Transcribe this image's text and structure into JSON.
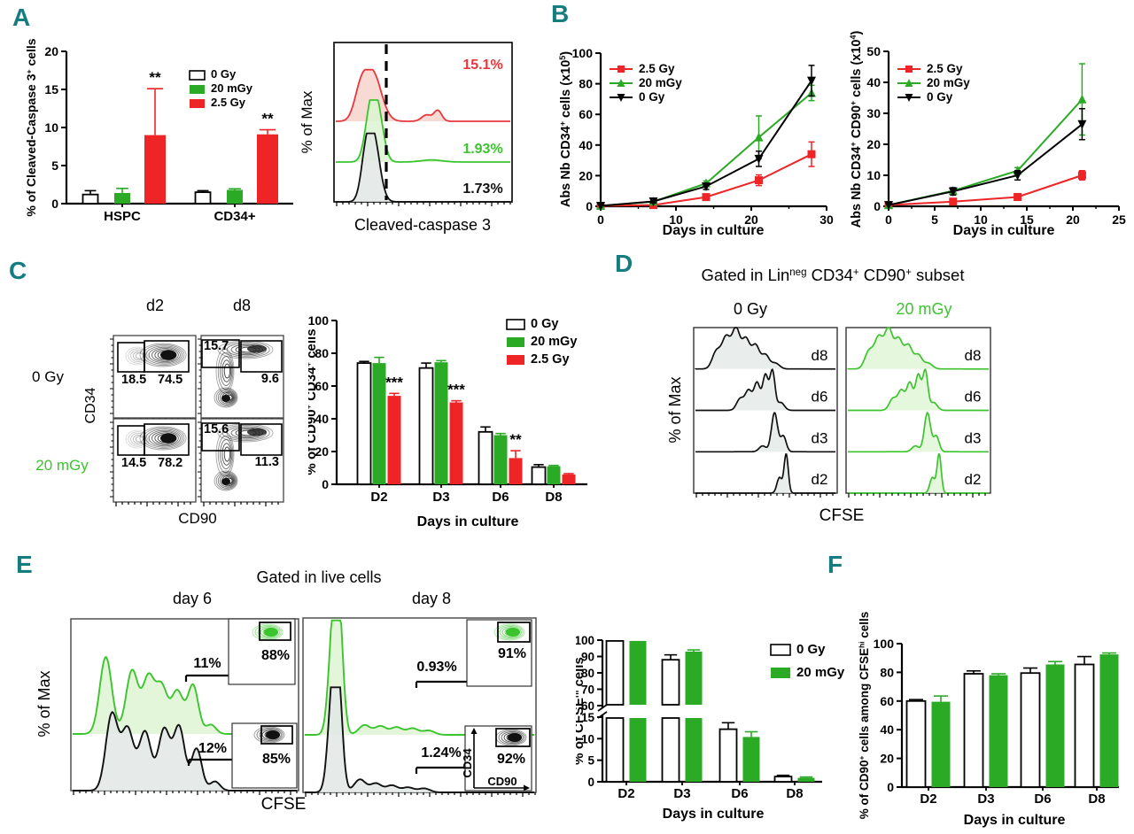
{
  "panel_labels": [
    "A",
    "B",
    "C",
    "D",
    "E",
    "F"
  ],
  "colors": {
    "teal": "#157c80",
    "green": "#2baa25",
    "green_bright": "#3cc42f",
    "red": "#ee2426",
    "red_bright": "#e8373c",
    "black": "#000000",
    "fill_green": "#dcf4d1",
    "fill_red": "#f7d4cd",
    "fill_gray": "#e2e8e6",
    "white": "#ffffff"
  },
  "chart_data": [
    {
      "id": "a_bar",
      "type": "grouped_bar",
      "ylabel": "% of Cleaved-Caspase 3^{+} cells",
      "ylim": [
        0,
        20
      ],
      "yticks": [
        0,
        5,
        10,
        15,
        20
      ],
      "categories": [
        "HSPC",
        "CD34+"
      ],
      "series": [
        {
          "name": "0 Gy",
          "color": "white",
          "values": [
            1.2,
            1.5
          ],
          "errors": [
            0.5,
            0.2
          ]
        },
        {
          "name": "20 mGy",
          "color": "green",
          "values": [
            1.4,
            1.8
          ],
          "errors": [
            0.6,
            0.15
          ]
        },
        {
          "name": "2.5 Gy",
          "color": "red",
          "values": [
            9.0,
            9.1
          ],
          "errors": [
            6.1,
            0.6
          ]
        }
      ],
      "sig": [
        {
          "category": 0,
          "series": 2,
          "text": "**"
        },
        {
          "category": 1,
          "series": 2,
          "text": "**"
        }
      ],
      "legend": [
        "0 Gy",
        "20 mGy",
        "2.5 Gy"
      ]
    },
    {
      "id": "a_hist",
      "type": "ridge_hist",
      "xlabel": "Cleaved-caspase 3",
      "ylabel": "% of Max",
      "rows": [
        {
          "label": "15.1%",
          "color": "red",
          "peaks": [
            [
              0.21,
              1.0,
              0.05
            ],
            [
              0.14,
              0.5,
              0.035
            ],
            [
              0.52,
              0.13,
              0.028
            ],
            [
              0.585,
              0.22,
              0.022
            ]
          ]
        },
        {
          "label": "1.93%",
          "color": "green",
          "peaks": [
            [
              0.205,
              1.0,
              0.033
            ],
            [
              0.25,
              0.55,
              0.03
            ],
            [
              0.55,
              0.035,
              0.06
            ]
          ]
        },
        {
          "label": "1.73%",
          "color": "black",
          "peaks": [
            [
              0.215,
              1.0,
              0.036
            ],
            [
              0.17,
              0.5,
              0.028
            ]
          ]
        }
      ]
    },
    {
      "id": "b_left",
      "type": "line",
      "xlabel": "Days in culture",
      "ylabel": "Abs Nb CD34^{+} cells (x10^{5})",
      "xlim": [
        0,
        30
      ],
      "xticks": [
        0,
        10,
        20,
        30
      ],
      "ylim": [
        0,
        100
      ],
      "yticks": [
        0,
        20,
        40,
        60,
        80,
        100
      ],
      "x": [
        0,
        7,
        14,
        21,
        28
      ],
      "series": [
        {
          "name": "2.5 Gy",
          "color": "red",
          "marker": "square",
          "values": [
            0.3,
            0.8,
            6,
            17,
            34
          ],
          "errors": [
            0,
            0.4,
            1,
            3.5,
            8
          ]
        },
        {
          "name": "20 mGy",
          "color": "green",
          "marker": "triangle-up",
          "values": [
            0.3,
            3,
            15,
            45,
            74
          ],
          "errors": [
            0,
            0.5,
            1.5,
            14,
            5
          ]
        },
        {
          "name": "0 Gy",
          "color": "black",
          "marker": "triangle-down",
          "values": [
            0.3,
            3.2,
            13,
            31,
            82
          ],
          "errors": [
            0,
            1,
            2,
            5,
            10
          ]
        }
      ]
    },
    {
      "id": "b_right",
      "type": "line",
      "xlabel": "Days in culture",
      "ylabel": "Abs Nb CD34^{+} CD90^{+} cells (x10^{4})",
      "xlim": [
        0,
        25
      ],
      "xticks": [
        0,
        5,
        10,
        15,
        20,
        25
      ],
      "ylim": [
        0,
        50
      ],
      "yticks": [
        0,
        10,
        20,
        30,
        40,
        50
      ],
      "x": [
        0,
        7,
        14,
        21
      ],
      "series": [
        {
          "name": "2.5 Gy",
          "color": "red",
          "marker": "square",
          "values": [
            0.4,
            1.5,
            3,
            10
          ],
          "errors": [
            0,
            0.3,
            0.5,
            1.5
          ]
        },
        {
          "name": "20 mGy",
          "color": "green",
          "marker": "triangle-up",
          "values": [
            0.4,
            5,
            11.5,
            34.5
          ],
          "errors": [
            0,
            0.8,
            1,
            11.5
          ]
        },
        {
          "name": "0 Gy",
          "color": "black",
          "marker": "triangle-down",
          "values": [
            0.4,
            4.8,
            10,
            26.5
          ],
          "errors": [
            0,
            1.2,
            1.5,
            5
          ]
        }
      ]
    },
    {
      "id": "c_flow",
      "type": "flow_contour_grid",
      "col_labels": [
        "d2",
        "d8"
      ],
      "row_labels": [
        {
          "text": "0 Gy",
          "color": "black"
        },
        {
          "text": "20 mGy",
          "color": "green"
        }
      ],
      "xlabel": "CD90",
      "ylabel": "CD34",
      "panels": [
        {
          "values": [
            "18.5",
            "74.5"
          ]
        },
        {
          "values": [
            "15.7",
            "9.6"
          ]
        },
        {
          "values": [
            "14.5",
            "78.2"
          ]
        },
        {
          "values": [
            "15.6",
            "11.3"
          ]
        }
      ]
    },
    {
      "id": "c_bar",
      "type": "grouped_bar",
      "xlabel": "Days in culture",
      "ylabel": "% of CD90^{+} CD34^{+} cells",
      "ylim": [
        0,
        100
      ],
      "yticks": [
        0,
        20,
        40,
        60,
        80,
        100
      ],
      "categories": [
        "D2",
        "D3",
        "D6",
        "D8"
      ],
      "series": [
        {
          "name": "0 Gy",
          "color": "white",
          "values": [
            74,
            71,
            32,
            10.5
          ],
          "errors": [
            1,
            3,
            3,
            1.5
          ]
        },
        {
          "name": "20 mGy",
          "color": "green",
          "values": [
            74,
            74.5,
            30,
            11
          ],
          "errors": [
            3.5,
            1,
            1,
            0.5
          ]
        },
        {
          "name": "2.5 Gy",
          "color": "red",
          "values": [
            54,
            50,
            16,
            6
          ],
          "errors": [
            1.5,
            1,
            4.5,
            0.5
          ]
        }
      ],
      "sig": [
        {
          "category": 0,
          "series": 2,
          "text": "***"
        },
        {
          "category": 1,
          "series": 2,
          "text": "***"
        },
        {
          "category": 2,
          "series": 2,
          "text": "**"
        }
      ],
      "legend": [
        "0 Gy",
        "20 mGy",
        "2.5 Gy"
      ]
    },
    {
      "id": "d_flow",
      "type": "ridge_grid",
      "title": "Gated in Lin^{neg} CD34^{+} CD90^{+} subset",
      "columns": [
        {
          "label": "0 Gy",
          "color": "black"
        },
        {
          "label": "20 mGy",
          "color": "green"
        }
      ],
      "rows": [
        "d8",
        "d6",
        "d3",
        "d2"
      ],
      "xlabel": "CFSE",
      "ylabel": "% of Max",
      "peaks": {
        "d8": [
          [
            0.15,
            0.45,
            0.03
          ],
          [
            0.22,
            0.8,
            0.03
          ],
          [
            0.29,
            1.0,
            0.028
          ],
          [
            0.36,
            0.75,
            0.028
          ],
          [
            0.43,
            0.6,
            0.028
          ],
          [
            0.5,
            0.35,
            0.026
          ],
          [
            0.57,
            0.15,
            0.03
          ]
        ],
        "d6": [
          [
            0.32,
            0.3,
            0.026
          ],
          [
            0.38,
            0.5,
            0.024
          ],
          [
            0.44,
            0.7,
            0.022
          ],
          [
            0.5,
            0.9,
            0.02
          ],
          [
            0.55,
            1.0,
            0.018
          ],
          [
            0.61,
            0.2,
            0.025
          ]
        ],
        "d3": [
          [
            0.48,
            0.15,
            0.025
          ],
          [
            0.565,
            1.0,
            0.022
          ],
          [
            0.628,
            0.4,
            0.02
          ]
        ],
        "d2": [
          [
            0.6,
            0.4,
            0.018
          ],
          [
            0.648,
            1.0,
            0.015
          ]
        ]
      }
    },
    {
      "id": "e_flow",
      "type": "flow_overlay",
      "title": "Gated in live cells",
      "day_labels": [
        "day 6",
        "day 8"
      ],
      "xlabel": "CFSE",
      "ylabel": "% of Max",
      "inset_axes": {
        "x": "CD90",
        "y": "CD34"
      },
      "days": [
        {
          "green": {
            "gate_label": "11%",
            "inset_label": "88%",
            "peaks": [
              [
                0.148,
                1.0,
                0.027
              ],
              [
                0.265,
                0.82,
                0.027
              ],
              [
                0.338,
                0.72,
                0.026
              ],
              [
                0.397,
                0.6,
                0.026
              ],
              [
                0.467,
                0.55,
                0.026
              ],
              [
                0.537,
                0.63,
                0.024
              ],
              [
                0.617,
                0.12,
                0.022
              ]
            ]
          },
          "black": {
            "gate_label": "12%",
            "inset_label": "85%",
            "peaks": [
              [
                0.175,
                1.0,
                0.027
              ],
              [
                0.245,
                0.8,
                0.027
              ],
              [
                0.323,
                0.77,
                0.027
              ],
              [
                0.408,
                0.8,
                0.026
              ],
              [
                0.475,
                0.83,
                0.025
              ],
              [
                0.553,
                0.55,
                0.023
              ],
              [
                0.635,
                0.12,
                0.022
              ]
            ]
          }
        },
        {
          "green": {
            "gate_label": "0.93%",
            "inset_label": "91%",
            "peaks": [
              [
                0.125,
                1.0,
                0.02
              ],
              [
                0.15,
                0.9,
                0.018
              ],
              [
                0.26,
                0.09,
                0.025
              ],
              [
                0.33,
                0.08,
                0.025
              ],
              [
                0.4,
                0.07,
                0.025
              ],
              [
                0.47,
                0.06,
                0.025
              ],
              [
                0.54,
                0.04,
                0.025
              ]
            ]
          },
          "black": {
            "gate_label": "1.24%",
            "inset_label": "92%",
            "show_inset_axes": true,
            "peaks": [
              [
                0.122,
                1.0,
                0.02
              ],
              [
                0.147,
                0.88,
                0.018
              ],
              [
                0.24,
                0.13,
                0.025
              ],
              [
                0.31,
                0.09,
                0.025
              ],
              [
                0.38,
                0.07,
                0.025
              ],
              [
                0.45,
                0.05,
                0.025
              ],
              [
                0.52,
                0.04,
                0.025
              ]
            ]
          }
        }
      ]
    },
    {
      "id": "e_bar",
      "type": "broken_bar",
      "xlabel": "Days in culture",
      "ylabel": "% of CFSE^{hi} cells",
      "segments": [
        {
          "range": [
            60,
            100
          ],
          "ticks": [
            60,
            70,
            80,
            90,
            100
          ]
        },
        {
          "range": [
            0,
            15
          ],
          "ticks": [
            0,
            5,
            10,
            15
          ]
        }
      ],
      "categories": [
        "D2",
        "D3",
        "D6",
        "D8"
      ],
      "series": [
        {
          "name": "0 Gy",
          "color": "white",
          "values": [
            99.5,
            88,
            12.2,
            1.2
          ],
          "errors": [
            0,
            3,
            1.5,
            0.3
          ]
        },
        {
          "name": "20 mGy",
          "color": "green",
          "values": [
            99.5,
            93,
            10.4,
            0.9
          ],
          "errors": [
            0,
            1,
            1.2,
            0.2
          ]
        }
      ],
      "legend": [
        "0 Gy",
        "20 mGy"
      ]
    },
    {
      "id": "f_bar",
      "type": "grouped_bar",
      "xlabel": "Days in culture",
      "ylabel": "% of CD90^{+} cells among CFSE^{hi} cells",
      "ylim": [
        0,
        100
      ],
      "yticks": [
        0,
        20,
        40,
        60,
        80,
        100
      ],
      "categories": [
        "D2",
        "D3",
        "D6",
        "D8"
      ],
      "series": [
        {
          "name": "0 Gy",
          "color": "white",
          "values": [
            60,
            79,
            79.5,
            85.5
          ],
          "errors": [
            1,
            2,
            3.5,
            5.5
          ]
        },
        {
          "name": "20 mGy",
          "color": "green",
          "values": [
            59.5,
            78,
            85.5,
            92.5
          ],
          "errors": [
            4,
            1,
            2,
            1
          ]
        }
      ]
    }
  ]
}
